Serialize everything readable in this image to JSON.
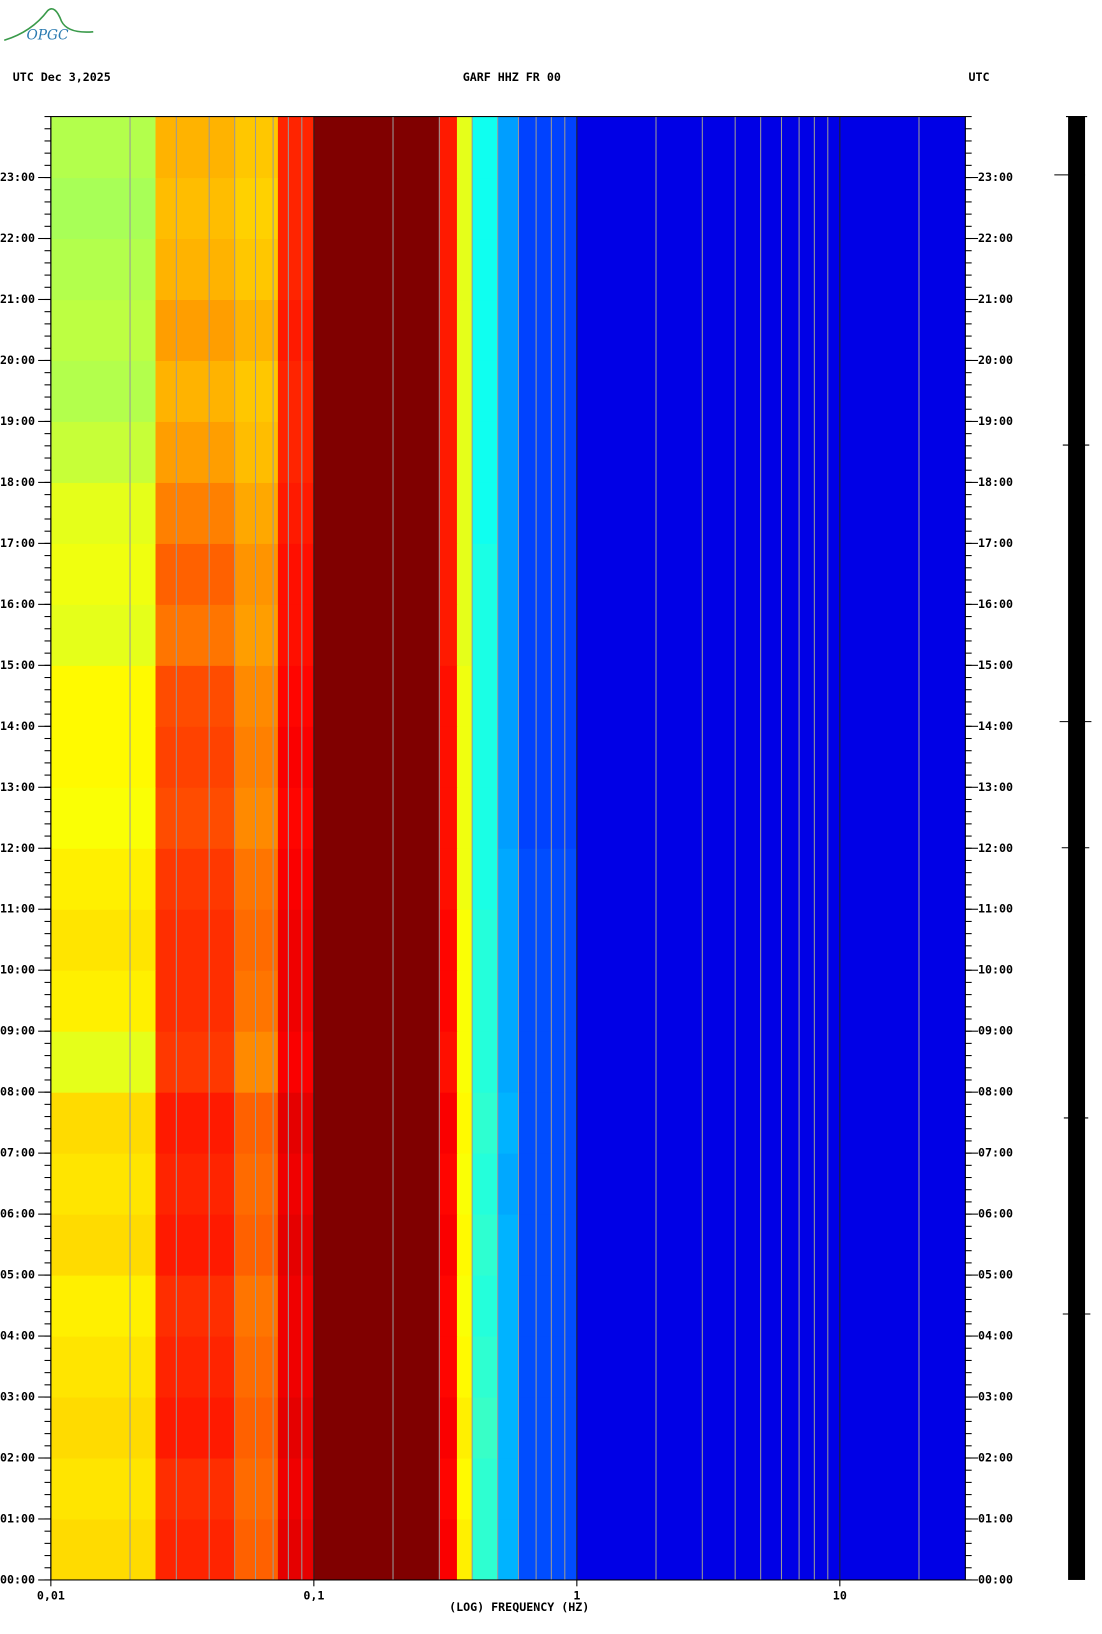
{
  "chart_data": {
    "type": "spectrogram",
    "logo": "OPGC",
    "title_left": "UTC  Dec 3,2025",
    "title": "GARF HHZ FR 00",
    "title_right": "UTC",
    "xlabel": "(LOG) FREQUENCY (HZ)",
    "xscale": "log",
    "xlim": [
      0.01,
      30
    ],
    "xticks": [
      {
        "value": 0.01,
        "label": "0,01"
      },
      {
        "value": 0.1,
        "label": "0,1"
      },
      1,
      10
    ],
    "ylim": [
      0,
      24
    ],
    "yticks": [
      {
        "value": 0,
        "label": "00:00"
      },
      {
        "value": 1,
        "label": "01:00"
      },
      {
        "value": 2,
        "label": "02:00"
      },
      {
        "value": 3,
        "label": "03:00"
      },
      {
        "value": 4,
        "label": "04:00"
      },
      {
        "value": 5,
        "label": "05:00"
      },
      {
        "value": 6,
        "label": "06:00"
      },
      {
        "value": 7,
        "label": "07:00"
      },
      {
        "value": 8,
        "label": "08:00"
      },
      {
        "value": 9,
        "label": "09:00"
      },
      {
        "value": 10,
        "label": "10:00"
      },
      {
        "value": 11,
        "label": "11:00"
      },
      {
        "value": 12,
        "label": "12:00"
      },
      {
        "value": 13,
        "label": "13:00"
      },
      {
        "value": 14,
        "label": "14:00"
      },
      {
        "value": 15,
        "label": "15:00"
      },
      {
        "value": 16,
        "label": "16:00"
      },
      {
        "value": 17,
        "label": "17:00"
      },
      {
        "value": 18,
        "label": "18:00"
      },
      {
        "value": 19,
        "label": "19:00"
      },
      {
        "value": 20,
        "label": "20:00"
      },
      {
        "value": 21,
        "label": "21:00"
      },
      {
        "value": 22,
        "label": "22:00"
      },
      {
        "value": 23,
        "label": "23:00"
      }
    ],
    "freq_bins": [
      0.01,
      0.025,
      0.05,
      0.073,
      0.1,
      0.3,
      0.35,
      0.4,
      0.5,
      0.6,
      1,
      30
    ],
    "time_bins": [
      0,
      1,
      2,
      3,
      4,
      5,
      6,
      7,
      8,
      9,
      10,
      11,
      12,
      13,
      14,
      15,
      16,
      17,
      18,
      19,
      20,
      21,
      22,
      23,
      24
    ],
    "z": [
      [
        0.66,
        0.84,
        0.78,
        0.9,
        1,
        0.88,
        0.64,
        0.42,
        0.3,
        0.2,
        0.1,
        0.05
      ],
      [
        0.65,
        0.83,
        0.77,
        0.89,
        1,
        0.87,
        0.63,
        0.42,
        0.3,
        0.2,
        0.1,
        0.05
      ],
      [
        0.66,
        0.85,
        0.78,
        0.9,
        1,
        0.88,
        0.64,
        0.43,
        0.3,
        0.2,
        0.1,
        0.05
      ],
      [
        0.65,
        0.84,
        0.77,
        0.89,
        1,
        0.87,
        0.63,
        0.42,
        0.3,
        0.2,
        0.1,
        0.05
      ],
      [
        0.64,
        0.83,
        0.76,
        0.89,
        1,
        0.87,
        0.62,
        0.41,
        0.3,
        0.2,
        0.1,
        0.05
      ],
      [
        0.66,
        0.85,
        0.78,
        0.9,
        1,
        0.88,
        0.63,
        0.42,
        0.3,
        0.2,
        0.1,
        0.05
      ],
      [
        0.65,
        0.84,
        0.77,
        0.89,
        1,
        0.87,
        0.62,
        0.41,
        0.29,
        0.2,
        0.1,
        0.05
      ],
      [
        0.66,
        0.85,
        0.78,
        0.9,
        1,
        0.88,
        0.63,
        0.42,
        0.3,
        0.2,
        0.1,
        0.05
      ],
      [
        0.6,
        0.82,
        0.74,
        0.88,
        1,
        0.86,
        0.62,
        0.41,
        0.29,
        0.2,
        0.1,
        0.05
      ],
      [
        0.64,
        0.83,
        0.76,
        0.89,
        1,
        0.87,
        0.62,
        0.41,
        0.29,
        0.2,
        0.1,
        0.05
      ],
      [
        0.65,
        0.83,
        0.77,
        0.89,
        1,
        0.87,
        0.62,
        0.41,
        0.29,
        0.2,
        0.1,
        0.05
      ],
      [
        0.64,
        0.82,
        0.76,
        0.88,
        1,
        0.86,
        0.61,
        0.4,
        0.29,
        0.2,
        0.1,
        0.05
      ],
      [
        0.62,
        0.8,
        0.74,
        0.87,
        1,
        0.86,
        0.61,
        0.4,
        0.28,
        0.19,
        0.1,
        0.05
      ],
      [
        0.63,
        0.81,
        0.75,
        0.88,
        1,
        0.86,
        0.61,
        0.4,
        0.28,
        0.19,
        0.1,
        0.05
      ],
      [
        0.63,
        0.8,
        0.74,
        0.87,
        1,
        0.86,
        0.61,
        0.4,
        0.28,
        0.19,
        0.1,
        0.05
      ],
      [
        0.6,
        0.76,
        0.72,
        0.86,
        1,
        0.85,
        0.6,
        0.4,
        0.28,
        0.19,
        0.1,
        0.05
      ],
      [
        0.61,
        0.78,
        0.73,
        0.86,
        1,
        0.85,
        0.6,
        0.4,
        0.28,
        0.19,
        0.1,
        0.05
      ],
      [
        0.6,
        0.75,
        0.71,
        0.85,
        1,
        0.85,
        0.6,
        0.39,
        0.28,
        0.19,
        0.1,
        0.05
      ],
      [
        0.57,
        0.72,
        0.69,
        0.84,
        1,
        0.85,
        0.6,
        0.39,
        0.28,
        0.19,
        0.1,
        0.05
      ],
      [
        0.55,
        0.7,
        0.68,
        0.84,
        1,
        0.85,
        0.6,
        0.39,
        0.28,
        0.19,
        0.1,
        0.05
      ],
      [
        0.56,
        0.72,
        0.7,
        0.85,
        1,
        0.85,
        0.6,
        0.39,
        0.28,
        0.19,
        0.1,
        0.05
      ],
      [
        0.55,
        0.7,
        0.68,
        0.84,
        1,
        0.85,
        0.6,
        0.39,
        0.28,
        0.19,
        0.1,
        0.05
      ],
      [
        0.54,
        0.69,
        0.67,
        0.84,
        1,
        0.85,
        0.6,
        0.39,
        0.28,
        0.19,
        0.1,
        0.05
      ],
      [
        0.55,
        0.7,
        0.68,
        0.84,
        1,
        0.85,
        0.6,
        0.39,
        0.28,
        0.19,
        0.1,
        0.05
      ]
    ]
  }
}
